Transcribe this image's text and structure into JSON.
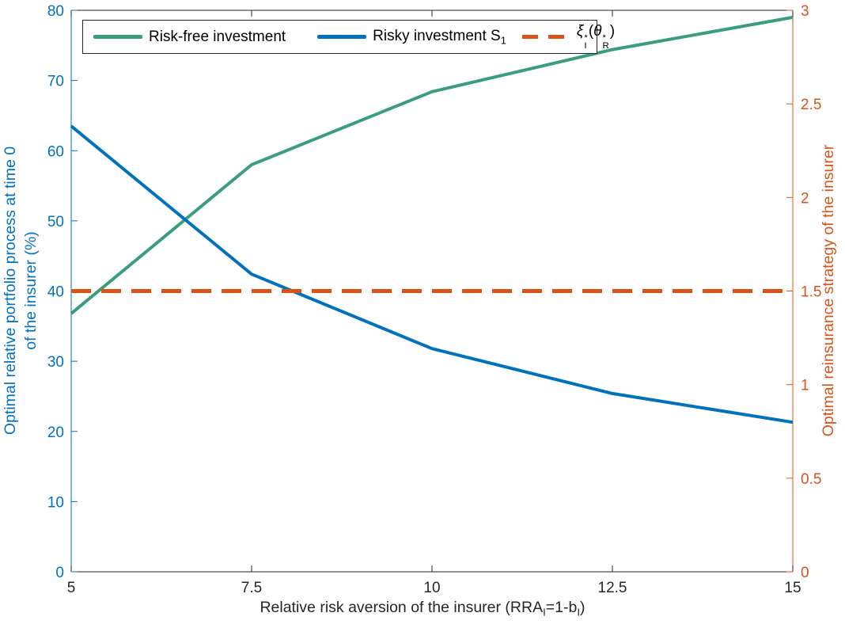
{
  "chart_data": {
    "type": "line",
    "title": "",
    "axis_text_color": "#262626",
    "grid": false,
    "xlabel_text": "Relative risk aversion of the insurer (RRA_I=1-b_I)",
    "xlabel_rich": [
      {
        "t": "Relative risk aversion of the insurer (RRA"
      },
      {
        "sub": "I"
      },
      {
        "t": "=1-b"
      },
      {
        "sub": "I"
      },
      {
        "t": ")"
      }
    ],
    "xlim": [
      5,
      15
    ],
    "x_ticks": {
      "values": [
        5,
        7.5,
        10,
        12.5,
        15
      ],
      "labels": [
        "5",
        "7.5",
        "10",
        "12.5",
        "15"
      ]
    },
    "left_axis": {
      "label_line1": "Optimal relative portfolio process at time 0",
      "label_line2": "of the insurer (%)",
      "color": "#0072BD",
      "lim": [
        0,
        80
      ],
      "tick_values": [
        0,
        10,
        20,
        30,
        40,
        50,
        60,
        70,
        80
      ],
      "tick_labels": [
        "0",
        "10",
        "20",
        "30",
        "40",
        "50",
        "60",
        "70",
        "80"
      ]
    },
    "right_axis": {
      "label": "Optimal reinsurance strategy of the insurer",
      "color": "#D95319",
      "lim": [
        0,
        3
      ],
      "tick_values": [
        0,
        0.5,
        1,
        1.5,
        2,
        2.5,
        3
      ],
      "tick_labels": [
        "0",
        "0.5",
        "1",
        "1.5",
        "2",
        "2.5",
        "3"
      ]
    },
    "x": [
      5,
      7.5,
      10,
      12.5,
      15
    ],
    "series": [
      {
        "id": "risk_free",
        "name": "Risk-free investment",
        "axis": "left",
        "color": "#3A9E7C",
        "line_style": "solid",
        "line_width": 4,
        "values": [
          36.8,
          58.0,
          68.4,
          74.4,
          79.0
        ]
      },
      {
        "id": "risky",
        "name": "Risky investment S_1",
        "axis": "left",
        "color": "#0072BD",
        "line_style": "solid",
        "line_width": 4,
        "values": [
          63.5,
          42.4,
          31.8,
          25.4,
          21.3
        ]
      },
      {
        "id": "reinsurance",
        "name": "xi*_I(theta*_R)",
        "axis": "right",
        "color": "#D95319",
        "line_style": "dashed",
        "line_width": 5,
        "values": [
          1.5,
          1.5,
          1.5,
          1.5,
          1.5
        ]
      }
    ],
    "legend": {
      "position": "north",
      "items": [
        {
          "series": "risk_free",
          "label_rich": [
            {
              "t": "Risk-free investment"
            }
          ]
        },
        {
          "series": "risky",
          "label_rich": [
            {
              "t": "Risky investment S"
            },
            {
              "sub": "1"
            }
          ]
        },
        {
          "series": "reinsurance",
          "label_rich": [
            {
              "t": "ξ",
              "i": true
            },
            {
              "stack": [
                "*",
                "I"
              ]
            },
            {
              "t": "("
            },
            {
              "t": "θ",
              "i": true
            },
            {
              "stack": [
                "*",
                "R"
              ]
            },
            {
              "t": ")"
            }
          ]
        }
      ]
    }
  }
}
